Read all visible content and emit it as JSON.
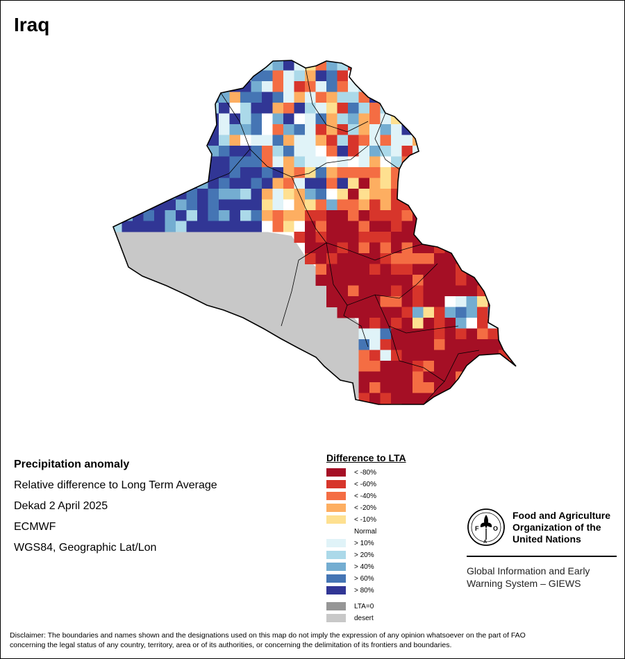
{
  "page": {
    "title": "Iraq"
  },
  "info": {
    "heading": "Precipitation anomaly",
    "line1": "Relative difference to Long Term Average",
    "line2": "Dekad 2 April 2025",
    "line3": "ECMWF",
    "line4": "WGS84, Geographic Lat/Lon"
  },
  "legend": {
    "title": "Difference to LTA",
    "items": [
      {
        "label": "< -80%",
        "color": "#a50f25"
      },
      {
        "label": "< -60%",
        "color": "#d7352b"
      },
      {
        "label": "< -40%",
        "color": "#f46d43"
      },
      {
        "label": "< -20%",
        "color": "#fdae61"
      },
      {
        "label": "< -10%",
        "color": "#fee090"
      },
      {
        "label": "Normal",
        "color": "#ffffff"
      },
      {
        "label": "> 10%",
        "color": "#e0f3f8"
      },
      {
        "label": "> 20%",
        "color": "#abd9e9"
      },
      {
        "label": "> 40%",
        "color": "#74add1"
      },
      {
        "label": "> 60%",
        "color": "#4575b4"
      },
      {
        "label": "> 80%",
        "color": "#313695"
      },
      {
        "label": "LTA=0",
        "color": "#969696"
      },
      {
        "label": "desert",
        "color": "#c8c8c8"
      }
    ]
  },
  "fao": {
    "org_line1": "Food and Agriculture",
    "org_line2": "Organization of the",
    "org_line3": "United Nations",
    "giews_line1": "Global Information and Early",
    "giews_line2": "Warning System – GIEWS",
    "logo_text": "FIAT PANIS"
  },
  "disclaimer": {
    "line1": "Disclaimer: The boundaries and names shown and the designations used on this map do not imply the expression of any opinion whatsoever on the part of FAO",
    "line2": "concerning the legal status of any country, territory, area or of its authorities, or concerning the delimitation of its frontiers and boundaries."
  },
  "map_colors": {
    "desert": "#c8c8c8",
    "border": "#000000"
  }
}
